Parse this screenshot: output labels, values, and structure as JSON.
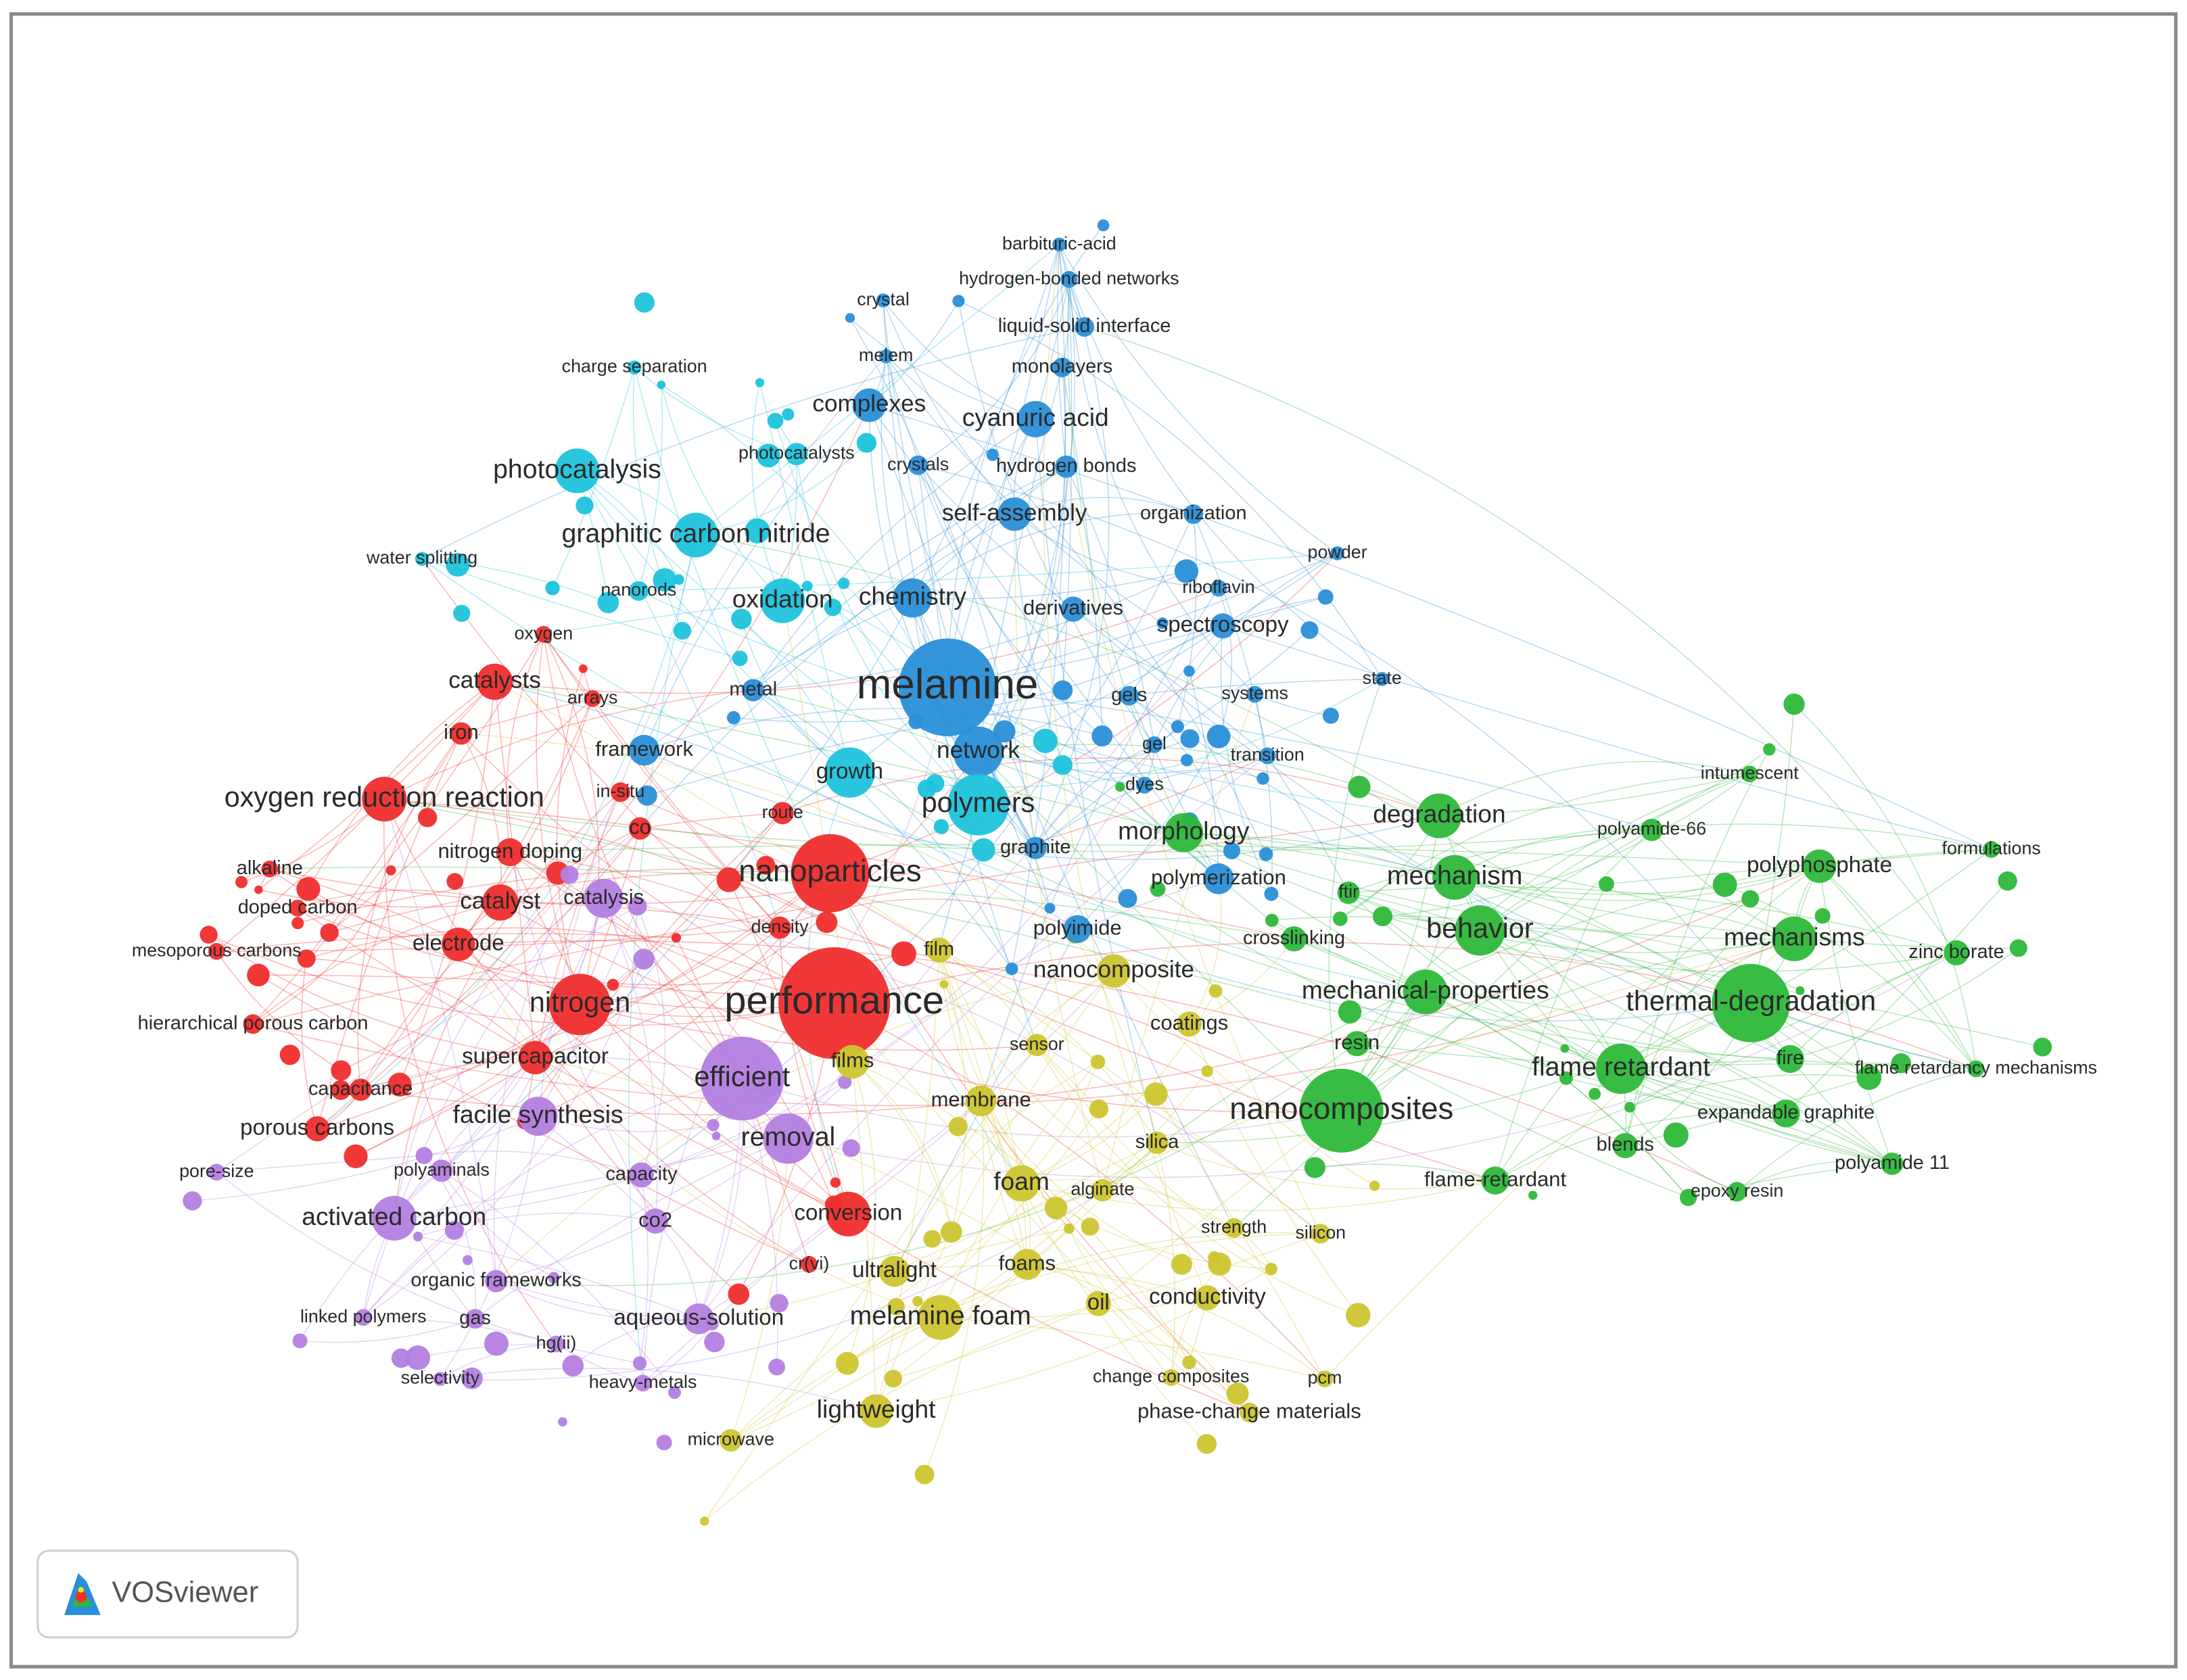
{
  "clusters": [
    {
      "color": "#2a8fd8",
      "nodes": [
        "barbituric-acid",
        "hydrogen-bonded networks",
        "crystal",
        "liquid-solid interface",
        "melem",
        "monolayers",
        "complexes",
        "cyanuric acid",
        "crystals",
        "hydrogen bonds",
        "self-assembly",
        "organization",
        "powder",
        "riboflavin",
        "chemistry",
        "derivatives",
        "spectroscopy",
        "melamine",
        "state",
        "gels",
        "systems",
        "gel",
        "transition",
        "network",
        "framework",
        "metal",
        "dyes",
        "polymerization",
        "polyimide",
        "graphite"
      ]
    },
    {
      "color": "#1ec3dc",
      "nodes": [
        "charge separation",
        "photocatalysts",
        "photocatalysis",
        "graphitic carbon nitride",
        "water splitting",
        "nanorods",
        "oxidation",
        "polymers",
        "growth"
      ]
    },
    {
      "color": "#ef2d2d",
      "nodes": [
        "oxygen",
        "catalysts",
        "arrays",
        "iron",
        "oxygen reduction reaction",
        "in-situ",
        "co",
        "route",
        "nitrogen doping",
        "alkaline",
        "nanoparticles",
        "catalyst",
        "doped carbon",
        "density",
        "electrode",
        "mesoporous carbons",
        "nitrogen",
        "performance",
        "hierarchical porous carbon",
        "capacitance",
        "supercapacitor",
        "porous carbons",
        "conversion",
        "cr(vi)"
      ]
    },
    {
      "color": "#b37ee0",
      "nodes": [
        "catalysis",
        "facile synthesis",
        "efficient",
        "removal",
        "polyaminals",
        "pore-size",
        "capacity",
        "activated carbon",
        "co2",
        "organic frameworks",
        "linked polymers",
        "gas",
        "aqueous-solution",
        "hg(ii)",
        "selectivity",
        "heavy-metals"
      ]
    },
    {
      "color": "#cdc530",
      "nodes": [
        "film",
        "nanocomposite",
        "coatings",
        "sensor",
        "films",
        "membrane",
        "silica",
        "foam",
        "alginate",
        "strength",
        "silicon",
        "ultralight",
        "foams",
        "oil",
        "conductivity",
        "melamine foam",
        "change composites",
        "pcm",
        "lightweight",
        "phase-change materials",
        "microwave"
      ]
    },
    {
      "color": "#2eb83a",
      "nodes": [
        "intumescent",
        "degradation",
        "morphology",
        "polyamide-66",
        "polyphosphate",
        "formulations",
        "mechanism",
        "ftir",
        "behavior",
        "crosslinking",
        "mechanisms",
        "zinc borate",
        "mechanical-properties",
        "thermal-degradation",
        "resin",
        "flame retardant",
        "fire",
        "flame retardancy mechanisms",
        "nanocomposites",
        "expandable graphite",
        "blends",
        "polyamide 11",
        "flame-retardant",
        "epoxy resin"
      ]
    }
  ],
  "logo": {
    "text": "VOSviewer"
  }
}
